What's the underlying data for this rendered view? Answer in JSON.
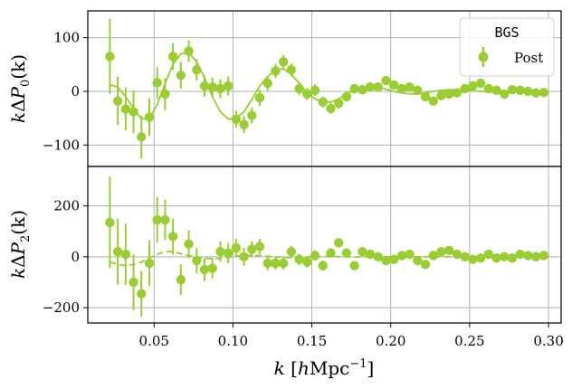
{
  "colors": {
    "series": "#9acd32",
    "grid": "#b0b0b0",
    "axis": "#000000",
    "legend_border": "#cccccc"
  },
  "chart_data": [
    {
      "type": "scatter",
      "panel": "top",
      "ylabel": "kΔP₀(k)",
      "ylabel_parts": [
        "kΔP",
        "0",
        "(k)"
      ],
      "xlim": [
        0.008,
        0.308
      ],
      "ylim": [
        -140,
        150
      ],
      "yticks": [
        100,
        0,
        -100
      ],
      "ytick_labels": [
        "100",
        "0",
        "−100"
      ],
      "grid": true,
      "legend": {
        "title": "BGS",
        "label": "Post",
        "placement": "top-right"
      },
      "series": [
        {
          "name": "Post",
          "style": "errorbar-points",
          "x": [
            0.022,
            0.027,
            0.032,
            0.037,
            0.042,
            0.047,
            0.052,
            0.057,
            0.062,
            0.067,
            0.072,
            0.077,
            0.082,
            0.087,
            0.092,
            0.097,
            0.102,
            0.107,
            0.112,
            0.117,
            0.122,
            0.127,
            0.132,
            0.137,
            0.142,
            0.147,
            0.152,
            0.157,
            0.162,
            0.167,
            0.172,
            0.177,
            0.182,
            0.187,
            0.192,
            0.197,
            0.202,
            0.207,
            0.212,
            0.217,
            0.222,
            0.227,
            0.232,
            0.237,
            0.242,
            0.247,
            0.252,
            0.257,
            0.262,
            0.267,
            0.272,
            0.277,
            0.282,
            0.287,
            0.292,
            0.297
          ],
          "y": [
            65,
            -18,
            -33,
            -38,
            -85,
            -48,
            16,
            -5,
            65,
            30,
            75,
            40,
            10,
            8,
            5,
            10,
            -52,
            -62,
            -45,
            -12,
            15,
            38,
            55,
            40,
            5,
            -5,
            2,
            -20,
            -32,
            -22,
            -10,
            5,
            3,
            8,
            8,
            20,
            12,
            5,
            8,
            2,
            -10,
            -18,
            -8,
            -5,
            -3,
            5,
            10,
            15,
            5,
            2,
            -5,
            3,
            2,
            0,
            -3,
            -2
          ],
          "yerr": [
            70,
            45,
            40,
            40,
            40,
            35,
            30,
            30,
            25,
            25,
            20,
            20,
            20,
            18,
            18,
            18,
            16,
            16,
            15,
            15,
            14,
            13,
            13,
            12,
            12,
            11,
            11,
            10,
            10,
            10,
            9,
            9,
            9,
            9,
            8,
            8,
            8,
            8,
            8,
            8,
            8,
            7,
            7,
            7,
            7,
            7,
            7,
            7,
            7,
            7,
            7,
            6,
            6,
            6,
            6,
            6
          ]
        },
        {
          "name": "model",
          "style": "solid-line",
          "x": [
            0.022,
            0.027,
            0.032,
            0.037,
            0.042,
            0.047,
            0.052,
            0.057,
            0.062,
            0.067,
            0.072,
            0.077,
            0.082,
            0.087,
            0.092,
            0.097,
            0.102,
            0.107,
            0.112,
            0.117,
            0.122,
            0.127,
            0.132,
            0.137,
            0.142,
            0.147,
            0.152,
            0.157,
            0.162,
            0.167,
            0.172,
            0.177,
            0.182,
            0.187,
            0.192,
            0.197,
            0.202,
            0.207,
            0.212,
            0.217,
            0.222,
            0.227,
            0.232,
            0.237,
            0.242,
            0.247,
            0.252,
            0.257,
            0.262,
            0.267,
            0.272,
            0.277,
            0.282,
            0.287,
            0.292,
            0.297
          ],
          "y": [
            12,
            8,
            -10,
            -32,
            -52,
            -50,
            -25,
            15,
            50,
            70,
            72,
            55,
            25,
            -10,
            -38,
            -52,
            -50,
            -38,
            -15,
            10,
            28,
            40,
            42,
            32,
            15,
            -2,
            -14,
            -20,
            -20,
            -14,
            -5,
            3,
            7,
            8,
            7,
            4,
            0,
            -3,
            -5,
            -5,
            -3,
            0,
            2,
            3,
            3,
            2,
            1,
            0,
            -1,
            -1,
            0,
            0,
            1,
            1,
            0,
            0
          ]
        }
      ]
    },
    {
      "type": "scatter",
      "panel": "bottom",
      "ylabel": "kΔP₂(k)",
      "ylabel_parts": [
        "kΔP",
        "2",
        "(k)"
      ],
      "xlabel": "k [hMpc⁻¹]",
      "xlabel_parts": [
        "k [",
        "h",
        "Mpc",
        "−1",
        "]"
      ],
      "xlim": [
        0.008,
        0.308
      ],
      "ylim": [
        -260,
        355
      ],
      "xticks": [
        0.05,
        0.1,
        0.15,
        0.2,
        0.25,
        0.3
      ],
      "xtick_labels": [
        "0.05",
        "0.10",
        "0.15",
        "0.20",
        "0.25",
        "0.30"
      ],
      "yticks": [
        200,
        0,
        -200
      ],
      "ytick_labels": [
        "200",
        "0",
        "−200"
      ],
      "grid": true,
      "series": [
        {
          "name": "Post",
          "style": "errorbar-points",
          "x": [
            0.022,
            0.027,
            0.032,
            0.037,
            0.042,
            0.047,
            0.052,
            0.057,
            0.062,
            0.067,
            0.072,
            0.077,
            0.082,
            0.087,
            0.092,
            0.097,
            0.102,
            0.107,
            0.112,
            0.117,
            0.122,
            0.127,
            0.132,
            0.137,
            0.142,
            0.147,
            0.152,
            0.157,
            0.162,
            0.167,
            0.172,
            0.177,
            0.182,
            0.187,
            0.192,
            0.197,
            0.202,
            0.207,
            0.212,
            0.217,
            0.222,
            0.227,
            0.232,
            0.237,
            0.242,
            0.247,
            0.252,
            0.257,
            0.262,
            0.267,
            0.272,
            0.277,
            0.282,
            0.287,
            0.292,
            0.297
          ],
          "y": [
            135,
            20,
            10,
            -100,
            -145,
            -25,
            145,
            145,
            80,
            -90,
            50,
            -15,
            -50,
            -45,
            20,
            15,
            35,
            0,
            30,
            40,
            -25,
            -25,
            -25,
            20,
            -10,
            -20,
            5,
            -35,
            15,
            55,
            15,
            -35,
            20,
            10,
            0,
            -15,
            -10,
            5,
            10,
            -15,
            -30,
            5,
            20,
            25,
            10,
            0,
            -10,
            -5,
            10,
            -5,
            0,
            -5,
            10,
            5,
            0,
            5
          ],
          "yerr": [
            180,
            130,
            120,
            110,
            90,
            90,
            90,
            80,
            70,
            60,
            55,
            50,
            45,
            40,
            40,
            40,
            35,
            35,
            30,
            30,
            28,
            26,
            25,
            24,
            22,
            22,
            20,
            20,
            18,
            18,
            18,
            16,
            16,
            16,
            15,
            15,
            15,
            14,
            14,
            14,
            13,
            13,
            13,
            12,
            12,
            12,
            12,
            11,
            11,
            11,
            11,
            10,
            10,
            10,
            10,
            10
          ]
        },
        {
          "name": "model",
          "style": "dashed-line",
          "x": [
            0.022,
            0.027,
            0.032,
            0.037,
            0.042,
            0.047,
            0.052,
            0.057,
            0.062,
            0.067,
            0.072,
            0.077,
            0.082,
            0.087,
            0.092,
            0.097,
            0.102,
            0.107,
            0.112,
            0.117,
            0.122,
            0.127,
            0.132,
            0.137,
            0.142,
            0.147,
            0.152,
            0.157,
            0.162,
            0.167,
            0.172,
            0.177,
            0.182,
            0.187,
            0.192,
            0.197,
            0.202,
            0.207,
            0.212,
            0.217,
            0.222,
            0.227,
            0.232,
            0.237,
            0.242,
            0.247,
            0.252,
            0.257,
            0.262,
            0.267,
            0.272,
            0.277,
            0.282,
            0.287,
            0.292,
            0.297
          ],
          "y": [
            -20,
            -30,
            -35,
            -30,
            -20,
            -5,
            10,
            20,
            20,
            12,
            5,
            0,
            -5,
            -8,
            -6,
            -2,
            2,
            5,
            6,
            5,
            2,
            -1,
            -3,
            -4,
            -3,
            -2,
            0,
            1,
            2,
            1,
            0,
            -1,
            -1,
            0,
            0,
            0,
            0,
            0,
            0,
            0,
            0,
            0,
            0,
            0,
            0,
            0,
            0,
            0,
            0,
            0,
            0,
            0,
            0,
            0,
            0,
            0
          ]
        }
      ]
    }
  ]
}
